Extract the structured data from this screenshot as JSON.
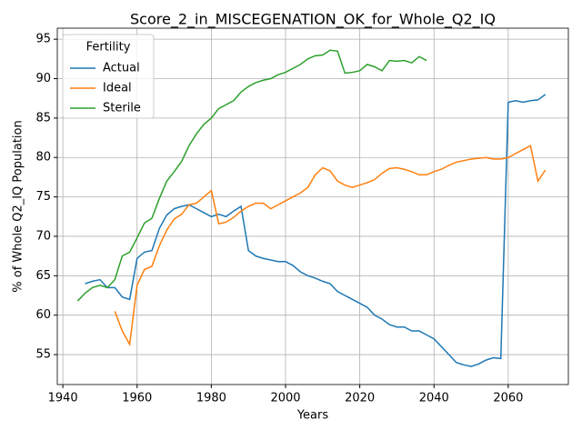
{
  "chart_data": {
    "type": "line",
    "title": "Score_2_in_MISCEGENATION_OK_for_Whole_Q2_IQ",
    "x_label": "Years",
    "y_label": "% of Whole Q2_IQ Population",
    "legend_title": "Fertility",
    "legend": "upper left",
    "grid": true,
    "xlim": [
      1938.5,
      2076.2
    ],
    "xticks": [
      1940,
      1960,
      1980,
      2000,
      2020,
      2040,
      2060
    ],
    "ylim": [
      51.2,
      96.4
    ],
    "yticks": [
      55,
      60,
      65,
      70,
      75,
      80,
      85,
      90,
      95
    ],
    "x": [
      1944,
      1946,
      1948,
      1950,
      1952,
      1954,
      1956,
      1958,
      1960,
      1962,
      1964,
      1966,
      1968,
      1970,
      1972,
      1974,
      1976,
      1978,
      1980,
      1982,
      1984,
      1986,
      1988,
      1990,
      1992,
      1994,
      1996,
      1998,
      2000,
      2002,
      2004,
      2006,
      2008,
      2010,
      2012,
      2014,
      2016,
      2018,
      2020,
      2022,
      2024,
      2026,
      2028,
      2030,
      2032,
      2034,
      2036,
      2038,
      2040,
      2042,
      2044,
      2046,
      2048,
      2050,
      2052,
      2054,
      2056,
      2058,
      2060,
      2062,
      2064,
      2066,
      2068,
      2070
    ],
    "series": [
      {
        "name": "Actual",
        "color": "#1f77b4",
        "values": [
          null,
          64.0,
          64.3,
          64.5,
          63.5,
          63.5,
          62.3,
          62,
          67.2,
          68,
          68.2,
          71,
          72.7,
          73.5,
          73.8,
          74,
          73.5,
          73,
          72.5,
          72.8,
          72.5,
          73.2,
          73.8,
          68.2,
          67.5,
          67.2,
          67,
          66.8,
          66.8,
          66.3,
          65.5,
          65,
          64.7,
          64.3,
          64,
          63,
          62.5,
          62,
          61.5,
          61,
          60,
          59.5,
          58.8,
          58.5,
          58.5,
          58,
          58,
          57.5,
          57,
          56,
          55,
          54,
          53.7,
          53.5,
          53.8,
          54.3,
          54.6,
          54.5,
          87,
          87.2,
          87,
          87.2,
          87.3,
          88
        ]
      },
      {
        "name": "Ideal",
        "color": "#ff7f0e",
        "values": [
          null,
          null,
          null,
          null,
          null,
          60.5,
          58,
          56.3,
          63.8,
          65.8,
          66.2,
          68.8,
          70.8,
          72.2,
          72.8,
          74,
          74.2,
          75,
          75.8,
          71.6,
          71.8,
          72.4,
          73.2,
          73.8,
          74.2,
          74.2,
          73.5,
          74,
          74.5,
          75,
          75.5,
          76.2,
          77.8,
          78.7,
          78.3,
          77,
          76.5,
          76.2,
          76.5,
          76.8,
          77.2,
          78,
          78.6,
          78.7,
          78.5,
          78.2,
          77.8,
          77.8,
          78.2,
          78.5,
          79,
          79.4,
          79.6,
          79.8,
          79.9,
          80,
          79.8,
          79.8,
          80,
          80.5,
          81,
          81.5,
          77,
          78.4
        ]
      },
      {
        "name": "Sterile",
        "color": "#2ca02c",
        "values": [
          61.8,
          62.8,
          63.5,
          63.8,
          63.5,
          64.5,
          67.5,
          68,
          69.8,
          71.7,
          72.3,
          74.8,
          77,
          78.2,
          79.5,
          81.5,
          83,
          84.2,
          85,
          86.2,
          86.7,
          87.2,
          88.3,
          89,
          89.5,
          89.8,
          90,
          90.5,
          90.8,
          91.3,
          91.8,
          92.5,
          92.9,
          93,
          93.6,
          93.5,
          90.7,
          90.8,
          91,
          91.8,
          91.5,
          91,
          92.3,
          92.2,
          92.3,
          92,
          92.8,
          92.3,
          null,
          null,
          null,
          null,
          null,
          null,
          null,
          null,
          null,
          null,
          null,
          null,
          null,
          null,
          null,
          null
        ]
      }
    ]
  }
}
